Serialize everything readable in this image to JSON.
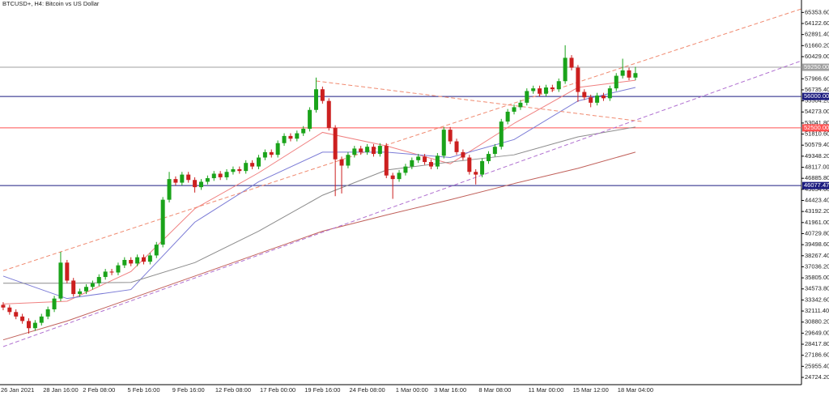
{
  "chart_data": {
    "type": "candlestick",
    "title": "BTCUSD+, H4:  Bitcoin vs US Dollar",
    "up_color": "#1aa31a",
    "down_color": "#cc1f1f",
    "categories": [
      "26 Jan 2021",
      null,
      null,
      null,
      null,
      null,
      null,
      null,
      null,
      "28 Jan 16:00",
      null,
      null,
      null,
      null,
      null,
      "2 Feb 08:00",
      null,
      null,
      null,
      null,
      null,
      null,
      "5 Feb 16:00",
      null,
      null,
      null,
      null,
      null,
      null,
      "9 Feb 16:00",
      null,
      null,
      null,
      null,
      null,
      null,
      "12 Feb 08:00",
      null,
      null,
      null,
      null,
      null,
      null,
      "17 Feb 00:00",
      null,
      null,
      null,
      null,
      null,
      null,
      "19 Feb 16:00",
      null,
      null,
      null,
      null,
      null,
      null,
      "24 Feb 08:00",
      null,
      null,
      null,
      null,
      null,
      null,
      "1 Mar 00:00",
      null,
      null,
      null,
      null,
      null,
      "3 Mar 16:00",
      null,
      null,
      null,
      null,
      null,
      null,
      "8 Mar 08:00",
      null,
      null,
      null,
      null,
      null,
      null,
      null,
      "11 Mar 00:00",
      null,
      null,
      null,
      null,
      null,
      null,
      "15 Mar 12:00",
      null,
      null,
      null,
      null,
      null,
      null,
      "18 Mar 04:00"
    ],
    "open": [
      32800,
      32500,
      32000,
      31500,
      31000,
      30200,
      30800,
      31500,
      32300,
      33500,
      37500,
      35500,
      34000,
      34300,
      34800,
      35200,
      35900,
      36500,
      36400,
      37200,
      37800,
      37400,
      38100,
      37600,
      38300,
      39500,
      44500,
      46800,
      46400,
      47300,
      46700,
      45900,
      46500,
      46900,
      47400,
      47000,
      47600,
      47900,
      47700,
      48600,
      48200,
      49200,
      49800,
      49500,
      50800,
      51600,
      51300,
      51900,
      52400,
      54500,
      56800,
      55500,
      52500,
      49000,
      48300,
      49500,
      50200,
      49800,
      50400,
      49600,
      50500,
      47200,
      46800,
      47500,
      48200,
      48900,
      49300,
      48700,
      48200,
      49400,
      52300,
      51000,
      49800,
      49200,
      47600,
      47300,
      48800,
      49600,
      50400,
      53200,
      54300,
      54800,
      55300,
      56600,
      56900,
      56300,
      57000,
      56800,
      57700,
      60300,
      59200,
      56500,
      55900,
      55300,
      56100,
      55800,
      56900,
      58300,
      58900,
      58100
    ],
    "high": [
      33100,
      32800,
      32300,
      31800,
      31300,
      31100,
      31800,
      32600,
      33800,
      38700,
      37800,
      35800,
      34600,
      35100,
      35500,
      36200,
      36800,
      36800,
      37500,
      38100,
      38100,
      38400,
      38400,
      38600,
      39800,
      44800,
      47600,
      47100,
      47600,
      47600,
      47000,
      46800,
      47200,
      47700,
      47700,
      47900,
      48200,
      48200,
      48900,
      48900,
      49500,
      50100,
      50100,
      51100,
      51900,
      51900,
      52200,
      52700,
      54800,
      58100,
      57100,
      55800,
      52800,
      49300,
      49800,
      50500,
      50500,
      50700,
      50700,
      50800,
      50800,
      47500,
      47800,
      48500,
      49200,
      49600,
      49600,
      49000,
      49700,
      52600,
      52600,
      51300,
      50100,
      49500,
      47900,
      49100,
      49900,
      50700,
      53500,
      54600,
      55100,
      55600,
      56900,
      57200,
      57200,
      57300,
      57300,
      58000,
      61700,
      60600,
      59500,
      56800,
      56200,
      56400,
      56400,
      57200,
      58600,
      60200,
      59200,
      59300
    ],
    "low": [
      32200,
      31700,
      31200,
      30700,
      29600,
      29900,
      30500,
      31200,
      32000,
      33200,
      35200,
      33700,
      33700,
      34000,
      34500,
      34900,
      35600,
      36100,
      36100,
      36900,
      37100,
      37100,
      37300,
      37300,
      38000,
      39200,
      44200,
      46100,
      46100,
      46400,
      45300,
      45600,
      46200,
      46600,
      46700,
      46700,
      47300,
      47400,
      47400,
      47900,
      47900,
      48900,
      49200,
      49200,
      50500,
      51000,
      51000,
      51600,
      52100,
      54200,
      55200,
      52200,
      44900,
      45200,
      48000,
      49200,
      49500,
      49500,
      49300,
      49300,
      46900,
      44600,
      46500,
      47200,
      47900,
      48600,
      48400,
      47900,
      47900,
      49100,
      50700,
      49500,
      48900,
      47300,
      46200,
      47000,
      48500,
      49300,
      50100,
      52900,
      54000,
      54500,
      55000,
      56300,
      56000,
      56000,
      56500,
      56500,
      57400,
      58900,
      55400,
      55600,
      54800,
      55000,
      55500,
      55500,
      56600,
      58000,
      57800,
      57800
    ],
    "close": [
      32500,
      32000,
      31500,
      31000,
      30200,
      30800,
      31500,
      32300,
      33500,
      37500,
      35500,
      34000,
      34300,
      34800,
      35200,
      35900,
      36500,
      36400,
      37200,
      37800,
      37400,
      38100,
      37600,
      38300,
      39500,
      44500,
      46800,
      46400,
      47300,
      46700,
      45900,
      46500,
      46900,
      47400,
      47000,
      47600,
      47900,
      47700,
      48600,
      48200,
      49200,
      49800,
      49500,
      50800,
      51600,
      51300,
      51900,
      52400,
      54500,
      56800,
      55500,
      52500,
      49000,
      48300,
      49500,
      50200,
      49800,
      50400,
      49600,
      50500,
      47200,
      46800,
      47500,
      48200,
      48900,
      49300,
      48700,
      48200,
      49400,
      52300,
      51000,
      49800,
      49200,
      47600,
      47300,
      48800,
      49600,
      50400,
      53200,
      54300,
      54800,
      55300,
      56600,
      56900,
      56300,
      57000,
      56800,
      57700,
      60300,
      59200,
      56500,
      55900,
      55300,
      56100,
      55800,
      56900,
      58300,
      58900,
      58100,
      58600
    ],
    "xlim": [
      -0.5,
      125
    ],
    "ylim": [
      23913,
      66737
    ],
    "yticks": [
      {
        "value": 65353.6,
        "label": "65353.60"
      },
      {
        "value": 64122.6,
        "label": "64122.60"
      },
      {
        "value": 62891.4,
        "label": "62891.40"
      },
      {
        "value": 61660.2,
        "label": "61660.20"
      },
      {
        "value": 60429,
        "label": "60429.00"
      },
      {
        "value": 57966.6,
        "label": "57966.60"
      },
      {
        "value": 56735.4,
        "label": "56735.40"
      },
      {
        "value": 55504.2,
        "label": "55504.20"
      },
      {
        "value": 54273,
        "label": "54273.00"
      },
      {
        "value": 53041.8,
        "label": "53041.80"
      },
      {
        "value": 51810.6,
        "label": "51810.60"
      },
      {
        "value": 50579.4,
        "label": "50579.40"
      },
      {
        "value": 49348.2,
        "label": "49348.20"
      },
      {
        "value": 48117,
        "label": "48117.00"
      },
      {
        "value": 46885.8,
        "label": "46885.80"
      },
      {
        "value": 45654.6,
        "label": "45654.60"
      },
      {
        "value": 44423.4,
        "label": "44423.40"
      },
      {
        "value": 43192.2,
        "label": "43192.20"
      },
      {
        "value": 41961,
        "label": "41961.00"
      },
      {
        "value": 40729.8,
        "label": "40729.80"
      },
      {
        "value": 39498.6,
        "label": "39498.60"
      },
      {
        "value": 38267.4,
        "label": "38267.40"
      },
      {
        "value": 37036.2,
        "label": "37036.20"
      },
      {
        "value": 35805,
        "label": "35805.00"
      },
      {
        "value": 34573.8,
        "label": "34573.80"
      },
      {
        "value": 33342.6,
        "label": "33342.60"
      },
      {
        "value": 32111.4,
        "label": "32111.40"
      },
      {
        "value": 30880.2,
        "label": "30880.20"
      },
      {
        "value": 29649,
        "label": "29649.00"
      },
      {
        "value": 28417.8,
        "label": "28417.80"
      },
      {
        "value": 27186.6,
        "label": "27186.60"
      },
      {
        "value": 25955.4,
        "label": "25955.40"
      },
      {
        "value": 24724.2,
        "label": "24724.20"
      }
    ],
    "grid": false,
    "overlays": [
      {
        "color": "#f08080",
        "dashed": false,
        "x": [
          0,
          10,
          20,
          30,
          40,
          50,
          60,
          70,
          80,
          90,
          99
        ],
        "values": [
          32900,
          33200,
          36500,
          43500,
          47500,
          52000,
          50500,
          48500,
          53000,
          57000,
          57800
        ]
      },
      {
        "color": "#7b7bd6",
        "dashed": false,
        "x": [
          0,
          10,
          20,
          30,
          40,
          50,
          60,
          70,
          80,
          90,
          99
        ],
        "values": [
          36000,
          33500,
          34500,
          42000,
          46500,
          49800,
          49800,
          49200,
          51200,
          55500,
          57000
        ]
      },
      {
        "color": "#8c8c8c",
        "dashed": false,
        "x": [
          0,
          10,
          20,
          30,
          40,
          50,
          60,
          70,
          80,
          90,
          99
        ],
        "values": [
          35200,
          35200,
          35300,
          37500,
          41000,
          45000,
          47800,
          48700,
          49500,
          51500,
          52600
        ]
      },
      {
        "color": "#c0605a",
        "dashed": false,
        "x": [
          0,
          10,
          20,
          30,
          40,
          50,
          60,
          70,
          80,
          90,
          99
        ],
        "values": [
          28900,
          31000,
          33500,
          36000,
          38500,
          41000,
          42800,
          44500,
          46300,
          48000,
          49800
        ]
      },
      {
        "color": "#f08a70",
        "dashed": true,
        "x": [
          0,
          125
        ],
        "values": [
          36600,
          65750
        ]
      },
      {
        "color": "#b070d0",
        "dashed": true,
        "x": [
          0,
          125
        ],
        "values": [
          28150,
          59975
        ]
      },
      {
        "color": "#f08a70",
        "dashed": true,
        "x": [
          49,
          100
        ],
        "values": [
          57720,
          53210
        ]
      }
    ],
    "levels": [
      {
        "value": 59250,
        "label": "59250.00",
        "color": "#a0a0a0"
      },
      {
        "value": 56000,
        "label": "56000.00",
        "color": "#1c1c80"
      },
      {
        "value": 52500,
        "label": "52500.00",
        "color": "#ff5050"
      },
      {
        "value": 46077.47,
        "label": "46077.47",
        "color": "#1c1c80"
      }
    ]
  }
}
